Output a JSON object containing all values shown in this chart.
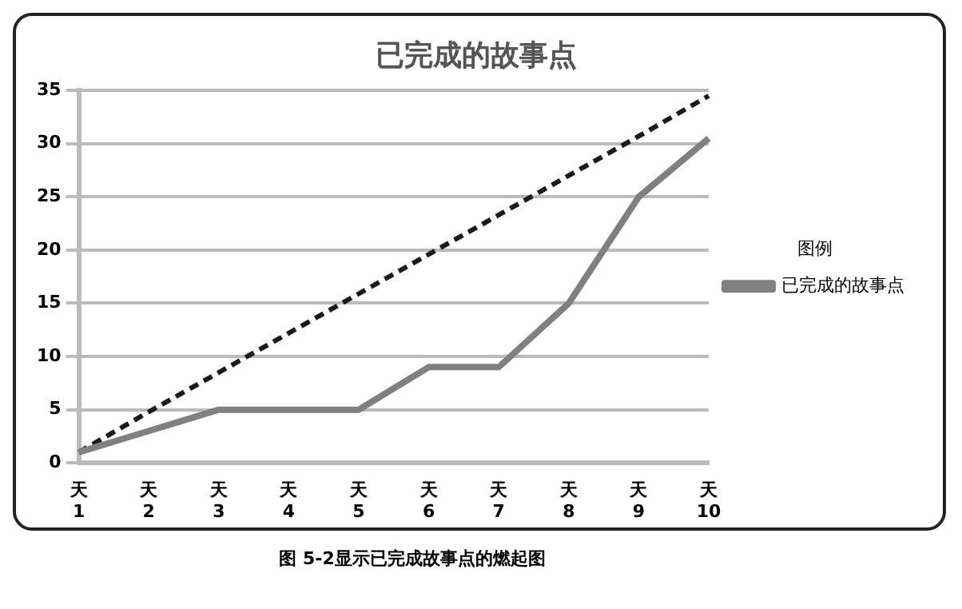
{
  "chart_data": {
    "type": "line",
    "title": "已完成的故事点",
    "legend_title": "图例",
    "categories": [
      "天 1",
      "天 2",
      "天 3",
      "天 4",
      "天 5",
      "天 6",
      "天 7",
      "天 8",
      "天 9",
      "天 10"
    ],
    "series": [
      {
        "name": "已完成的故事点",
        "color": "#808080",
        "values": [
          1,
          3,
          5,
          5,
          5,
          9,
          9,
          15,
          25,
          30.5
        ]
      },
      {
        "color": "#1a1a1a",
        "line_style": "dashed",
        "values": [
          1,
          4.8,
          8.5,
          12.2,
          15.9,
          19.6,
          23.3,
          27,
          30.7,
          34.5
        ]
      }
    ],
    "ylim": [
      0,
      35
    ],
    "yticks": [
      0,
      5,
      10,
      15,
      20,
      25,
      30,
      35
    ],
    "grid": "y",
    "legend": "right",
    "marker": "none",
    "annotations": [
      "图 5-2显示已完成故事点的燃起图"
    ]
  }
}
